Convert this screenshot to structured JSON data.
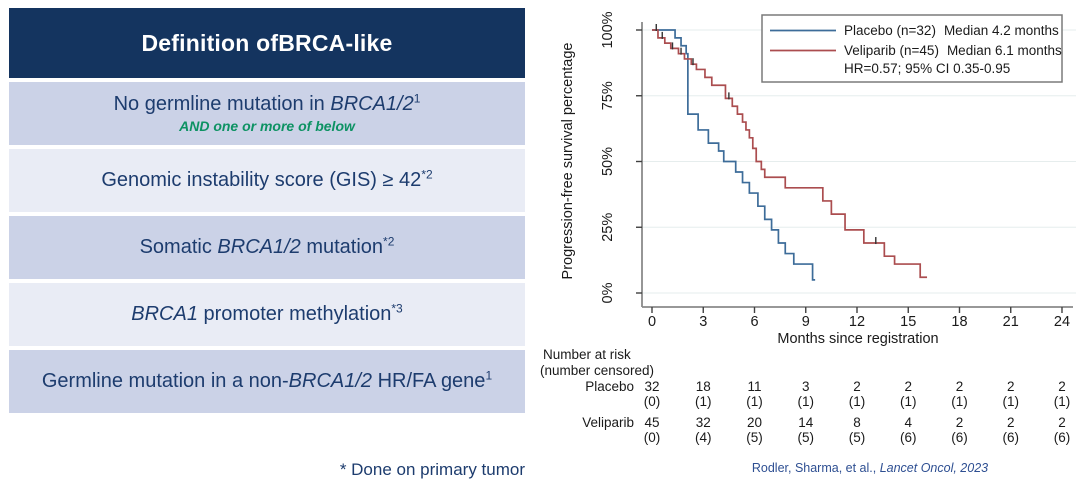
{
  "table": {
    "header_segments": [
      {
        "text": "Definition of "
      },
      {
        "text": "BRCA",
        "italic": true
      },
      {
        "text": "-like"
      }
    ],
    "rows": [
      {
        "segments": [
          {
            "text": "No germline mutation in "
          },
          {
            "text": "BRCA1/2",
            "italic": true
          },
          {
            "text": "1",
            "sup": true
          }
        ],
        "note": "AND one or more of below"
      },
      {
        "segments": [
          {
            "text": "Genomic instability score (GIS) ≥ 42"
          },
          {
            "text": "*2",
            "sup": true
          }
        ]
      },
      {
        "segments": [
          {
            "text": "Somatic "
          },
          {
            "text": "BRCA1/2",
            "italic": true
          },
          {
            "text": " mutation"
          },
          {
            "text": "*2",
            "sup": true
          }
        ]
      },
      {
        "segments": [
          {
            "text": "BRCA1",
            "italic": true
          },
          {
            "text": " promoter methylation"
          },
          {
            "text": "*3",
            "sup": true
          }
        ]
      },
      {
        "segments": [
          {
            "text": "Germline mutation in a non-"
          },
          {
            "text": "BRCA1/2",
            "italic": true
          },
          {
            "text": " HR/FA gene"
          },
          {
            "text": "1",
            "sup": true
          }
        ]
      }
    ],
    "footnote": "* Done on primary tumor",
    "colors": {
      "header_bg": "#14345f",
      "row_dark": "#cbd2e7",
      "row_light": "#e9ecf5",
      "text_navy": "#1d3c6e",
      "note_green": "#0d9263"
    }
  },
  "chart_data": {
    "type": "line",
    "subtype": "kaplan-meier-step",
    "title": "",
    "xlabel": "Months since registration",
    "ylabel": "Progression-free survival percentage",
    "xlim": [
      0,
      24
    ],
    "ylim": [
      0,
      100
    ],
    "xticks": [
      0,
      3,
      6,
      9,
      12,
      15,
      18,
      21,
      24
    ],
    "yticks": [
      0,
      25,
      50,
      75,
      100
    ],
    "ytick_labels": [
      "0%",
      "25%",
      "50%",
      "75%",
      "100%"
    ],
    "grid": true,
    "grid_color": "#e6eded",
    "axis_color": "#8a8a8a",
    "legend_position": "top-right",
    "legend": {
      "entries": [
        {
          "name": "Placebo",
          "label": "Placebo (n=32)",
          "median": "Median 4.2 months",
          "color": "#3d6c99"
        },
        {
          "name": "Veliparib",
          "label": "Veliparib (n=45)",
          "median": "Median 6.1 months",
          "color": "#ab4d4f"
        }
      ],
      "hr": "HR=0.57; 95% CI 0.35-0.95"
    },
    "series": [
      {
        "name": "Placebo",
        "color": "#3d6c99",
        "steps": [
          [
            0,
            100
          ],
          [
            1.35,
            97
          ],
          [
            1.7,
            94
          ],
          [
            2.0,
            91
          ],
          [
            2.1,
            68
          ],
          [
            2.7,
            62
          ],
          [
            3.3,
            57
          ],
          [
            3.9,
            54
          ],
          [
            4.2,
            50
          ],
          [
            4.9,
            46
          ],
          [
            5.3,
            42
          ],
          [
            5.7,
            38
          ],
          [
            6.2,
            33
          ],
          [
            6.6,
            28
          ],
          [
            7.0,
            24
          ],
          [
            7.4,
            19
          ],
          [
            7.8,
            15
          ],
          [
            8.3,
            11
          ],
          [
            9.4,
            5
          ]
        ],
        "end_month": 9.55,
        "censor_marks": [
          [
            0.25,
            100
          ]
        ]
      },
      {
        "name": "Veliparib",
        "color": "#ab4d4f",
        "steps": [
          [
            0,
            100
          ],
          [
            0.35,
            97
          ],
          [
            0.75,
            95
          ],
          [
            1.1,
            93
          ],
          [
            1.55,
            91
          ],
          [
            1.9,
            89
          ],
          [
            2.3,
            87
          ],
          [
            2.6,
            85
          ],
          [
            3.1,
            82
          ],
          [
            3.5,
            79
          ],
          [
            4.3,
            74
          ],
          [
            4.7,
            71
          ],
          [
            5.0,
            68
          ],
          [
            5.3,
            65
          ],
          [
            5.5,
            62
          ],
          [
            5.7,
            59
          ],
          [
            5.9,
            55
          ],
          [
            6.1,
            50
          ],
          [
            6.4,
            47
          ],
          [
            6.6,
            44
          ],
          [
            7.8,
            40
          ],
          [
            10.0,
            35
          ],
          [
            10.5,
            30
          ],
          [
            11.3,
            24
          ],
          [
            12.4,
            19
          ],
          [
            13.6,
            14
          ],
          [
            14.2,
            11
          ],
          [
            15.7,
            6
          ]
        ],
        "end_month": 16.1,
        "censor_marks": [
          [
            0.6,
            97
          ],
          [
            1.2,
            93
          ],
          [
            1.7,
            91
          ],
          [
            2.4,
            87
          ],
          [
            4.5,
            74
          ],
          [
            13.1,
            19
          ]
        ]
      }
    ]
  },
  "risk_table": {
    "title_line1": "Number at risk",
    "title_line2": "(number censored)",
    "time_points": [
      0,
      3,
      6,
      9,
      12,
      15,
      18,
      21,
      24
    ],
    "rows": [
      {
        "label": "Placebo",
        "at_risk": [
          "32",
          "18",
          "11",
          "3",
          "2",
          "2",
          "2",
          "2",
          "2"
        ],
        "censored": [
          "(0)",
          "(1)",
          "(1)",
          "(1)",
          "(1)",
          "(1)",
          "(1)",
          "(1)",
          "(1)"
        ]
      },
      {
        "label": "Veliparib",
        "at_risk": [
          "45",
          "32",
          "20",
          "14",
          "8",
          "4",
          "2",
          "2",
          "2"
        ],
        "censored": [
          "(0)",
          "(4)",
          "(5)",
          "(5)",
          "(5)",
          "(6)",
          "(6)",
          "(6)",
          "(6)"
        ]
      }
    ]
  },
  "citation": {
    "normal": "Rodler, Sharma, et al., ",
    "italic": "Lancet Oncol, 2023"
  }
}
